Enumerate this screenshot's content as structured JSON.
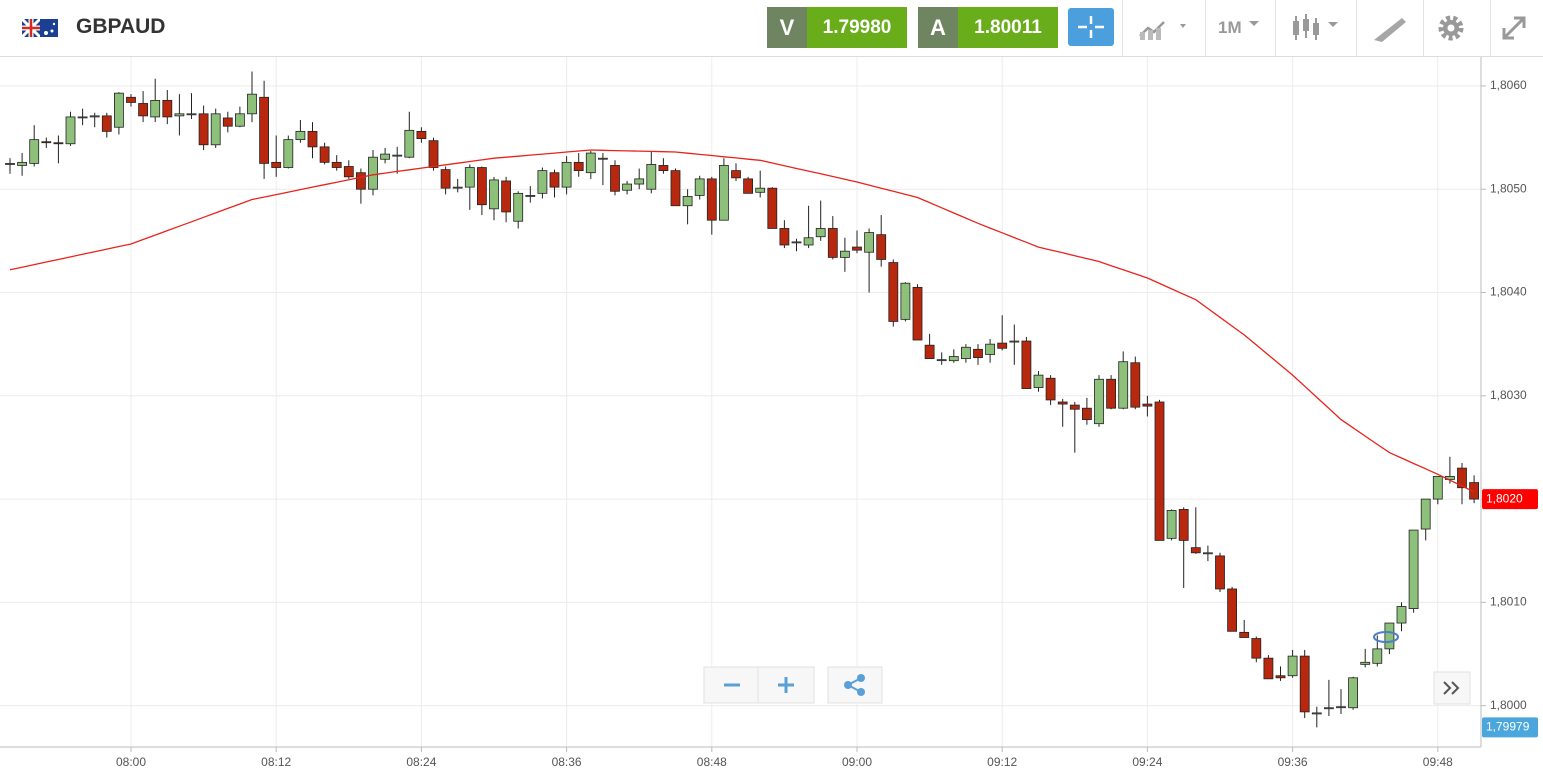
{
  "header": {
    "symbol": "GBPAUD",
    "bid_label": "V",
    "bid": "1.79980",
    "ask_label": "A",
    "ask": "1.80011",
    "timeframe": "1M"
  },
  "chart_data": {
    "type": "candlestick",
    "categories": [
      null,
      null,
      null,
      null,
      null,
      null,
      null,
      null,
      null,
      null,
      "08:00",
      null,
      null,
      null,
      null,
      null,
      null,
      null,
      null,
      null,
      null,
      null,
      "08:12",
      null,
      null,
      null,
      null,
      null,
      null,
      null,
      null,
      null,
      null,
      null,
      "08:24",
      null,
      null,
      null,
      null,
      null,
      null,
      null,
      null,
      null,
      null,
      null,
      "08:36",
      null,
      null,
      null,
      null,
      null,
      null,
      null,
      null,
      null,
      null,
      null,
      "08:48",
      null,
      null,
      null,
      null,
      null,
      null,
      null,
      null,
      null,
      null,
      null,
      "09:00",
      null,
      null,
      null,
      null,
      null,
      null,
      null,
      null,
      null,
      null,
      null,
      "09:12",
      null,
      null,
      null,
      null,
      null,
      null,
      null,
      null,
      null,
      null,
      null,
      "09:24",
      null,
      null,
      null,
      null,
      null,
      null,
      null,
      null,
      null,
      null,
      null,
      "09:36",
      null,
      null,
      null,
      null,
      null,
      null,
      null,
      null,
      null,
      null,
      null,
      "09:48",
      null,
      null,
      null
    ],
    "ohlc": [
      [
        1.80524,
        1.8053,
        1.80515,
        1.80525
      ],
      [
        1.80523,
        1.80535,
        1.80513,
        1.80526
      ],
      [
        1.80525,
        1.80562,
        1.80522,
        1.80548
      ],
      [
        1.80546,
        1.8055,
        1.8054,
        1.80545
      ],
      [
        1.80545,
        1.80552,
        1.80525,
        1.80544
      ],
      [
        1.80544,
        1.80575,
        1.80542,
        1.8057
      ],
      [
        1.8057,
        1.80578,
        1.80562,
        1.8057
      ],
      [
        1.8057,
        1.80574,
        1.8056,
        1.80571
      ],
      [
        1.80571,
        1.80574,
        1.8055,
        1.80556
      ],
      [
        1.8056,
        1.80594,
        1.80553,
        1.80593
      ],
      [
        1.80589,
        1.80592,
        1.8058,
        1.80584
      ],
      [
        1.80583,
        1.80595,
        1.80565,
        1.80571
      ],
      [
        1.8057,
        1.80607,
        1.80565,
        1.80586
      ],
      [
        1.80586,
        1.80596,
        1.80563,
        1.8057
      ],
      [
        1.80571,
        1.80592,
        1.80552,
        1.80573
      ],
      [
        1.80573,
        1.80593,
        1.80568,
        1.80573
      ],
      [
        1.80573,
        1.80581,
        1.80538,
        1.80543
      ],
      [
        1.80543,
        1.80578,
        1.8054,
        1.80573
      ],
      [
        1.80569,
        1.80575,
        1.80555,
        1.80561
      ],
      [
        1.80561,
        1.8058,
        1.8056,
        1.80573
      ],
      [
        1.80573,
        1.80614,
        1.80565,
        1.80592
      ],
      [
        1.80589,
        1.80605,
        1.8051,
        1.80525
      ],
      [
        1.80526,
        1.80552,
        1.80512,
        1.80521
      ],
      [
        1.80521,
        1.80552,
        1.8052,
        1.80548
      ],
      [
        1.80548,
        1.80567,
        1.80545,
        1.80556
      ],
      [
        1.80556,
        1.80565,
        1.8053,
        1.80541
      ],
      [
        1.80541,
        1.80545,
        1.80524,
        1.80526
      ],
      [
        1.80526,
        1.80533,
        1.80518,
        1.80521
      ],
      [
        1.80522,
        1.80528,
        1.8051,
        1.80512
      ],
      [
        1.80516,
        1.8052,
        1.80486,
        1.805
      ],
      [
        1.805,
        1.80538,
        1.80494,
        1.80531
      ],
      [
        1.80529,
        1.8054,
        1.80525,
        1.80534
      ],
      [
        1.80533,
        1.80541,
        1.80515,
        1.80533
      ],
      [
        1.80531,
        1.80575,
        1.8053,
        1.80557
      ],
      [
        1.80556,
        1.8056,
        1.80545,
        1.80549
      ],
      [
        1.80547,
        1.8055,
        1.80518,
        1.80521
      ],
      [
        1.80519,
        1.80522,
        1.80495,
        1.80501
      ],
      [
        1.80502,
        1.8051,
        1.80497,
        1.80502
      ],
      [
        1.80502,
        1.80524,
        1.8048,
        1.80521
      ],
      [
        1.80521,
        1.80522,
        1.80475,
        1.80485
      ],
      [
        1.80481,
        1.80512,
        1.8047,
        1.80509
      ],
      [
        1.80508,
        1.80512,
        1.80468,
        1.80478
      ],
      [
        1.80469,
        1.80498,
        1.80462,
        1.80496
      ],
      [
        1.80494,
        1.80503,
        1.80487,
        1.80494
      ],
      [
        1.80496,
        1.80521,
        1.80491,
        1.80518
      ],
      [
        1.80516,
        1.80519,
        1.80492,
        1.80502
      ],
      [
        1.80502,
        1.80532,
        1.80495,
        1.80526
      ],
      [
        1.80526,
        1.80535,
        1.80512,
        1.80518
      ],
      [
        1.80516,
        1.80537,
        1.8051,
        1.80535
      ],
      [
        1.8053,
        1.80535,
        1.80504,
        1.8053
      ],
      [
        1.80523,
        1.80528,
        1.80494,
        1.80498
      ],
      [
        1.80499,
        1.80508,
        1.80495,
        1.80505
      ],
      [
        1.80505,
        1.8052,
        1.805,
        1.8051
      ],
      [
        1.805,
        1.80536,
        1.80496,
        1.80524
      ],
      [
        1.80523,
        1.8053,
        1.80515,
        1.80518
      ],
      [
        1.80518,
        1.8052,
        1.80484,
        1.80484
      ],
      [
        1.80484,
        1.805,
        1.80466,
        1.80493
      ],
      [
        1.80494,
        1.80513,
        1.8049,
        1.8051
      ],
      [
        1.8051,
        1.80512,
        1.80456,
        1.8047
      ],
      [
        1.8047,
        1.8053,
        1.8047,
        1.80523
      ],
      [
        1.80518,
        1.80525,
        1.80508,
        1.80511
      ],
      [
        1.8051,
        1.80512,
        1.80496,
        1.80496
      ],
      [
        1.80497,
        1.80518,
        1.80492,
        1.80501
      ],
      [
        1.80501,
        1.80502,
        1.80462,
        1.80462
      ],
      [
        1.80462,
        1.8047,
        1.80443,
        1.80446
      ],
      [
        1.80449,
        1.80452,
        1.8044,
        1.80449
      ],
      [
        1.80446,
        1.80484,
        1.80443,
        1.80453
      ],
      [
        1.80454,
        1.80489,
        1.8045,
        1.80462
      ],
      [
        1.80462,
        1.80474,
        1.80432,
        1.80434
      ],
      [
        1.80434,
        1.80453,
        1.8042,
        1.8044
      ],
      [
        1.80444,
        1.8046,
        1.80438,
        1.80441
      ],
      [
        1.80439,
        1.80462,
        1.804,
        1.80458
      ],
      [
        1.80456,
        1.80475,
        1.80425,
        1.80432
      ],
      [
        1.80429,
        1.80432,
        1.80367,
        1.80372
      ],
      [
        1.80374,
        1.8041,
        1.80372,
        1.80409
      ],
      [
        1.80405,
        1.80408,
        1.80354,
        1.80354
      ],
      [
        1.80349,
        1.8036,
        1.80336,
        1.80336
      ],
      [
        1.80335,
        1.80342,
        1.8033,
        1.80335
      ],
      [
        1.80334,
        1.80345,
        1.80332,
        1.80338
      ],
      [
        1.80336,
        1.8035,
        1.80332,
        1.80347
      ],
      [
        1.80345,
        1.8035,
        1.8033,
        1.80337
      ],
      [
        1.8034,
        1.80355,
        1.80332,
        1.8035
      ],
      [
        1.80351,
        1.80378,
        1.80344,
        1.80346
      ],
      [
        1.80353,
        1.80369,
        1.8033,
        1.80353
      ],
      [
        1.80353,
        1.80357,
        1.80307,
        1.80307
      ],
      [
        1.80308,
        1.80324,
        1.80304,
        1.8032
      ],
      [
        1.80317,
        1.8032,
        1.80291,
        1.80296
      ],
      [
        1.80294,
        1.80297,
        1.8027,
        1.80292
      ],
      [
        1.80291,
        1.80294,
        1.80245,
        1.80287
      ],
      [
        1.80288,
        1.80298,
        1.80272,
        1.80277
      ],
      [
        1.80273,
        1.8032,
        1.8027,
        1.80316
      ],
      [
        1.80316,
        1.8032,
        1.80287,
        1.80288
      ],
      [
        1.80288,
        1.80343,
        1.80287,
        1.80333
      ],
      [
        1.80332,
        1.80338,
        1.80287,
        1.80289
      ],
      [
        1.80292,
        1.803,
        1.8028,
        1.8029
      ],
      [
        1.80294,
        1.80296,
        1.8016,
        1.8016
      ],
      [
        1.80162,
        1.8019,
        1.8016,
        1.80189
      ],
      [
        1.8019,
        1.80192,
        1.80114,
        1.8016
      ],
      [
        1.80153,
        1.80192,
        1.80147,
        1.80148
      ],
      [
        1.80148,
        1.80155,
        1.8014,
        1.80148
      ],
      [
        1.80145,
        1.80148,
        1.8011,
        1.80113
      ],
      [
        1.80113,
        1.80115,
        1.80072,
        1.80072
      ],
      [
        1.80071,
        1.80083,
        1.80066,
        1.80066
      ],
      [
        1.80065,
        1.80067,
        1.80042,
        1.80046
      ],
      [
        1.80046,
        1.80049,
        1.80026,
        1.80026
      ],
      [
        1.80029,
        1.80038,
        1.80024,
        1.80027
      ],
      [
        1.80029,
        1.80054,
        1.80027,
        1.80048
      ],
      [
        1.80048,
        1.80054,
        1.79988,
        1.79994
      ],
      [
        1.79993,
        1.79999,
        1.79979,
        1.79993
      ],
      [
        1.79998,
        1.80025,
        1.7999,
        1.79998
      ],
      [
        1.79999,
        1.80016,
        1.79992,
        1.79999
      ],
      [
        1.79998,
        1.80028,
        1.79996,
        1.80027
      ],
      [
        1.8004,
        1.80055,
        1.80037,
        1.80042
      ],
      [
        1.80041,
        1.80068,
        1.80038,
        1.80055
      ],
      [
        1.80055,
        1.8008,
        1.8005,
        1.8008
      ],
      [
        1.8008,
        1.801,
        1.80072,
        1.80096
      ],
      [
        1.80094,
        1.8017,
        1.8009,
        1.8017
      ],
      [
        1.80171,
        1.802,
        1.8016,
        1.802
      ],
      [
        1.802,
        1.80222,
        1.80195,
        1.80222
      ],
      [
        1.80219,
        1.80241,
        1.80215,
        1.80222
      ],
      [
        1.8023,
        1.80235,
        1.80195,
        1.80211
      ],
      [
        1.80216,
        1.80223,
        1.80196,
        1.802
      ]
    ],
    "up_color": "#8dc07a",
    "down_color": "#b8280f",
    "moving_average": {
      "color": "#e8231c",
      "values": [
        1.80422,
        1.804245,
        1.80427,
        1.804295,
        1.80432,
        1.804345,
        1.80437,
        1.804395,
        1.80442,
        1.804445,
        1.80447,
        1.804513,
        1.804556,
        1.804599,
        1.804642,
        1.804685,
        1.804728,
        1.804771,
        1.804814,
        1.804857,
        1.8049,
        1.804924,
        1.804948,
        1.804972,
        1.804996,
        1.80502,
        1.805044,
        1.805068,
        1.805092,
        1.805116,
        1.80514,
        1.805156,
        1.805172,
        1.805188,
        1.805204,
        1.80522,
        1.805236,
        1.805252,
        1.805268,
        1.805284,
        1.8053,
        1.80531,
        1.80532,
        1.80533,
        1.80534,
        1.80535,
        1.80536,
        1.80537,
        1.80538,
        1.805377,
        1.805374,
        1.805371,
        1.805369,
        1.805366,
        1.805363,
        1.80536,
        1.805349,
        1.805337,
        1.805326,
        1.805314,
        1.805303,
        1.805291,
        1.80528,
        1.805254,
        1.805228,
        1.805201,
        1.805175,
        1.805149,
        1.805123,
        1.805096,
        1.80507,
        1.80504,
        1.80501,
        1.80498,
        1.80495,
        1.80492,
        1.80487,
        1.80482,
        1.80477,
        1.80472,
        1.80467,
        1.804624,
        1.804578,
        1.804532,
        1.804486,
        1.80444,
        1.804412,
        1.804384,
        1.804356,
        1.804328,
        1.8043,
        1.80426,
        1.80422,
        1.80418,
        1.80414,
        1.804088,
        1.804035,
        1.803983,
        1.80393,
        1.803845,
        1.80376,
        1.803675,
        1.80359,
        1.803493,
        1.803395,
        1.803298,
        1.8032,
        1.803093,
        1.802985,
        1.802878,
        1.80277,
        1.80269,
        1.80261,
        1.80253,
        1.80245,
        1.802398,
        1.802345,
        1.802293,
        1.80224,
        1.802183,
        1.802127,
        1.80207
      ]
    },
    "ylim": [
      1.7996,
      1.80628
    ],
    "yticks": [
      {
        "value": 1.8,
        "label": "1,8000"
      },
      {
        "value": 1.801,
        "label": "1,8010"
      },
      {
        "value": 1.802,
        "label": "1,8020"
      },
      {
        "value": 1.803,
        "label": "1,8030"
      },
      {
        "value": 1.804,
        "label": "1,8040"
      },
      {
        "value": 1.805,
        "label": "1,8050"
      },
      {
        "value": 1.806,
        "label": "1,8060"
      }
    ],
    "price_tags": [
      {
        "value": 1.802,
        "label": "1,8020",
        "color": "#ff0000"
      },
      {
        "value": 1.79979,
        "label": "1,79979",
        "color": "#4aa6dc"
      }
    ],
    "grid": true
  }
}
